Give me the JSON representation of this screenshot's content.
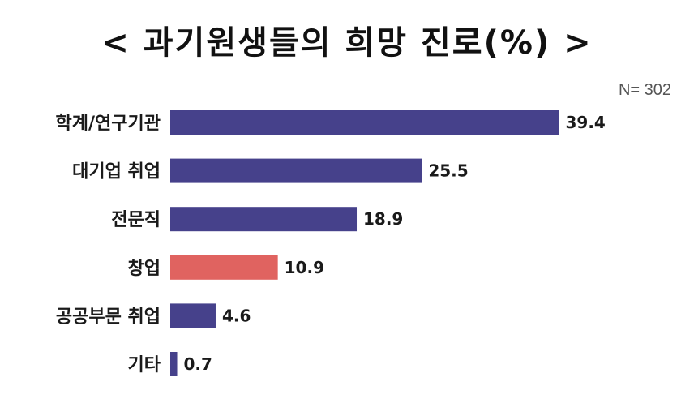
{
  "chart_data": {
    "type": "bar",
    "orientation": "horizontal",
    "title": "< 과기원생들의 희망 진로(%) >",
    "note": "N= 302",
    "categories": [
      "학계/연구기관",
      "대기업 취업",
      "전문직",
      "창업",
      "공공부문 취업",
      "기타"
    ],
    "values": [
      39.4,
      25.5,
      18.9,
      10.9,
      4.6,
      0.7
    ],
    "highlight_index": 3,
    "xlim": [
      0,
      45
    ],
    "grid": false,
    "legend": "none",
    "colors": {
      "bar": "#46418b",
      "highlight": "#e06360"
    }
  }
}
